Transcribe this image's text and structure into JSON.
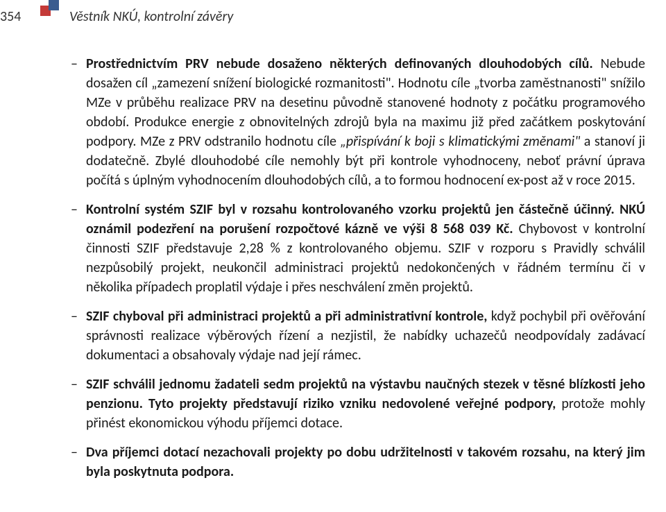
{
  "page_number": "354",
  "header_title": "Věstník NKÚ, kontrolní závěry",
  "logo": {
    "color1": "#c43a38",
    "color2": "#3a5c8f"
  },
  "bullet_marker": "–",
  "items": [
    {
      "runs": [
        {
          "t": "Prostřednictvím PRV nebude dosaženo některých definovaných dlouhodobých cílů. ",
          "b": true
        },
        {
          "t": "Nebude dosažen cíl „zamezení snížení biologické rozmanitosti\". Hodnotu cíle „tvorba zaměstnanosti\" snížilo MZe v průběhu realizace PRV na desetinu původně stanovené hodnoty z počátku programového období. Produkce energie z obnovitelných zdrojů byla na maximu již před začátkem poskytování podpory. MZe z PRV odstranilo hodnotu cíle "
        },
        {
          "t": "„přispívání k boji s klimatickými změnami\"",
          "i": true
        },
        {
          "t": " a stanoví ji dodatečně. Zbylé dlouhodobé cíle nemohly být při kontrole vyhodnoceny, neboť právní úprava počítá s úplným vyhodnocením dlouhodobých cílů, a to formou hodnocení ex-post až v roce 2015."
        }
      ]
    },
    {
      "runs": [
        {
          "t": "Kontrolní systém SZIF byl v rozsahu kontrolovaného vzorku projektů jen částečně účinný. NKÚ oznámil podezření na porušení rozpočtové kázně ve výši 8 568 039 Kč. ",
          "b": true
        },
        {
          "t": "Chybovost v kontrolní činnosti SZIF představuje 2,28 % z kontrolovaného objemu. SZIF v rozporu s Pravidly schválil nezpůsobilý projekt, neukončil administraci projektů nedokončených v řádném termínu či v několika případech proplatil výdaje i přes neschválení změn projektů."
        }
      ]
    },
    {
      "runs": [
        {
          "t": "SZIF chyboval při administraci projektů a při administrativní kontrole, ",
          "b": true
        },
        {
          "t": "když pochybil při ověřování správnosti realizace výběrových řízení a nezjistil, že nabídky uchazečů neodpovídaly zadávací dokumentaci a obsahovaly výdaje nad její rámec."
        }
      ]
    },
    {
      "runs": [
        {
          "t": "SZIF schválil jednomu žadateli sedm projektů na výstavbu naučných stezek v těsné blízkosti jeho penzionu. Tyto projekty představují riziko vzniku nedovolené veřejné podpory, ",
          "b": true
        },
        {
          "t": "protože mohly přinést ekonomickou výhodu příjemci dotace."
        }
      ]
    },
    {
      "runs": [
        {
          "t": "Dva příjemci dotací nezachovali projekty po dobu udržitelnosti v takovém rozsahu, na který jim byla poskytnuta podpora.",
          "b": true
        }
      ]
    }
  ]
}
